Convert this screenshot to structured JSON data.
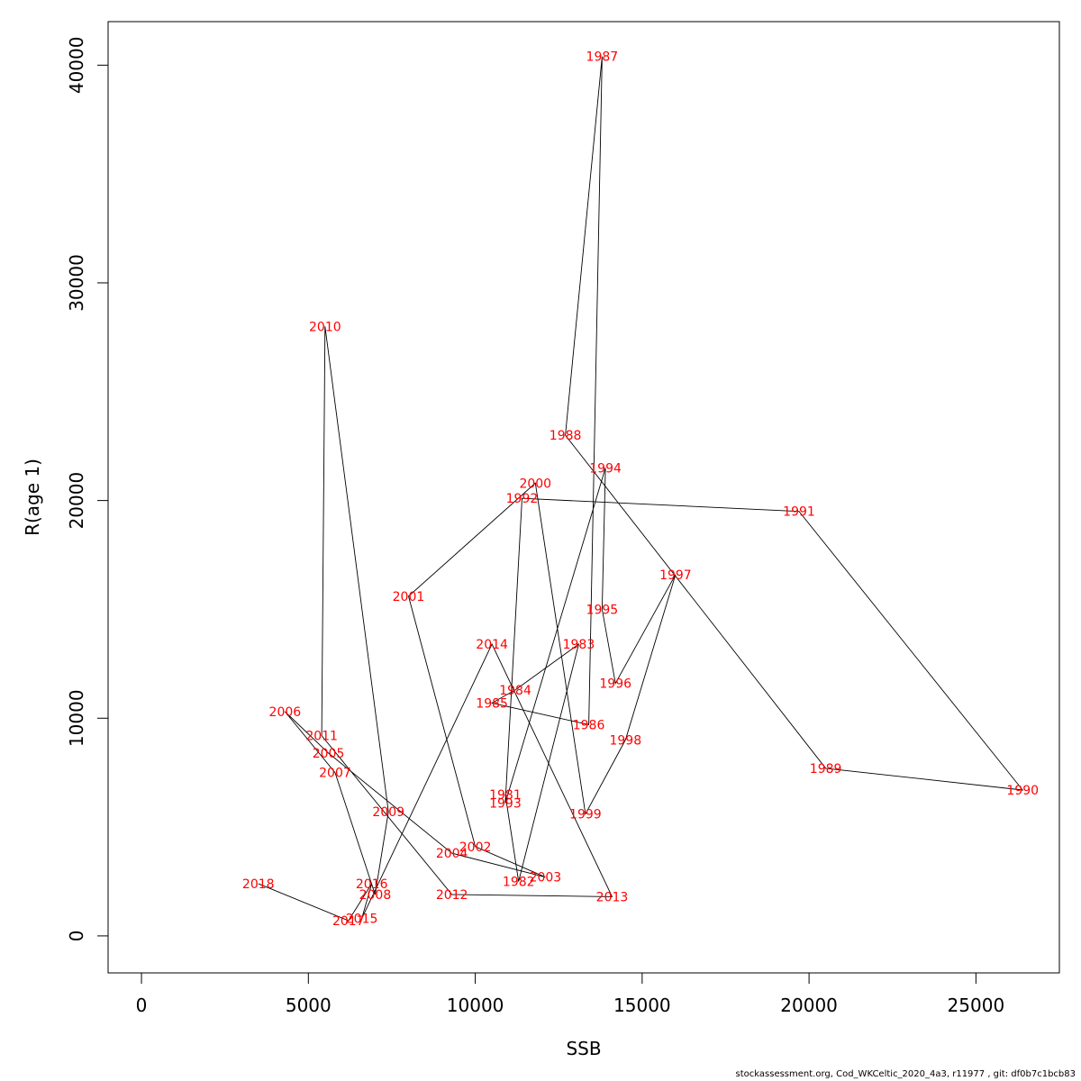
{
  "chart_data": {
    "type": "scatter",
    "connected": true,
    "xlabel": "SSB",
    "ylabel": "R(age 1)",
    "xlim": [
      -1000,
      27500
    ],
    "ylim": [
      -1700,
      42000
    ],
    "xticks": [
      0,
      5000,
      10000,
      15000,
      20000,
      25000
    ],
    "yticks": [
      0,
      10000,
      20000,
      30000,
      40000
    ],
    "grid": false,
    "line_color": "#000000",
    "label_color": "#ff0000",
    "points": [
      {
        "label": "1981",
        "x": 10900,
        "y": 6500
      },
      {
        "label": "1982",
        "x": 11300,
        "y": 2500
      },
      {
        "label": "1983",
        "x": 13100,
        "y": 13400
      },
      {
        "label": "1984",
        "x": 11200,
        "y": 11300
      },
      {
        "label": "1985",
        "x": 10500,
        "y": 10700
      },
      {
        "label": "1986",
        "x": 13400,
        "y": 9700
      },
      {
        "label": "1987",
        "x": 13800,
        "y": 40400
      },
      {
        "label": "1988",
        "x": 12700,
        "y": 23000
      },
      {
        "label": "1989",
        "x": 20500,
        "y": 7700
      },
      {
        "label": "1990",
        "x": 26400,
        "y": 6700
      },
      {
        "label": "1991",
        "x": 19700,
        "y": 19500
      },
      {
        "label": "1992",
        "x": 11400,
        "y": 20100
      },
      {
        "label": "1993",
        "x": 10900,
        "y": 6100
      },
      {
        "label": "1994",
        "x": 13900,
        "y": 21500
      },
      {
        "label": "1995",
        "x": 13800,
        "y": 15000
      },
      {
        "label": "1996",
        "x": 14200,
        "y": 11600
      },
      {
        "label": "1997",
        "x": 16000,
        "y": 16600
      },
      {
        "label": "1998",
        "x": 14500,
        "y": 9000
      },
      {
        "label": "1999",
        "x": 13300,
        "y": 5600
      },
      {
        "label": "2000",
        "x": 11800,
        "y": 20800
      },
      {
        "label": "2001",
        "x": 8000,
        "y": 15600
      },
      {
        "label": "2002",
        "x": 10000,
        "y": 4100
      },
      {
        "label": "2003",
        "x": 12100,
        "y": 2700
      },
      {
        "label": "2004",
        "x": 9300,
        "y": 3800
      },
      {
        "label": "2005",
        "x": 5600,
        "y": 8400
      },
      {
        "label": "2006",
        "x": 4300,
        "y": 10300
      },
      {
        "label": "2007",
        "x": 5800,
        "y": 7500
      },
      {
        "label": "2008",
        "x": 7000,
        "y": 1900
      },
      {
        "label": "2009",
        "x": 7400,
        "y": 5700
      },
      {
        "label": "2010",
        "x": 5500,
        "y": 28000
      },
      {
        "label": "2011",
        "x": 5400,
        "y": 9200
      },
      {
        "label": "2012",
        "x": 9300,
        "y": 1900
      },
      {
        "label": "2013",
        "x": 14100,
        "y": 1800
      },
      {
        "label": "2014",
        "x": 10500,
        "y": 13400
      },
      {
        "label": "2015",
        "x": 6600,
        "y": 800
      },
      {
        "label": "2016",
        "x": 6900,
        "y": 2400
      },
      {
        "label": "2017",
        "x": 6200,
        "y": 700
      },
      {
        "label": "2018",
        "x": 3500,
        "y": 2400
      }
    ]
  },
  "footer": {
    "text": "stockassessment.org, Cod_WKCeltic_2020_4a3, r11977 , git: df0b7c1bcb83"
  }
}
